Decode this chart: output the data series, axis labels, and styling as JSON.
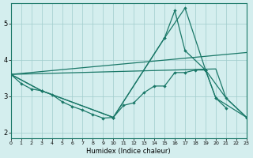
{
  "xlabel": "Humidex (Indice chaleur)",
  "bg_color": "#d4eeee",
  "grid_color": "#a0cccc",
  "line_color": "#1a7868",
  "xlim": [
    0,
    23
  ],
  "ylim": [
    1.85,
    5.55
  ],
  "xticks": [
    0,
    1,
    2,
    3,
    4,
    5,
    6,
    7,
    8,
    9,
    10,
    11,
    12,
    13,
    14,
    15,
    16,
    17,
    18,
    19,
    20,
    21,
    22,
    23
  ],
  "yticks": [
    2,
    3,
    4,
    5
  ],
  "lines": [
    {
      "x": [
        0,
        1,
        2,
        3,
        4,
        5,
        6,
        7,
        8,
        9,
        10,
        11,
        12,
        13,
        14,
        15,
        16,
        17,
        18,
        19,
        20,
        21,
        22,
        23
      ],
      "y": [
        3.6,
        3.35,
        3.2,
        3.15,
        3.05,
        2.85,
        2.72,
        2.62,
        2.5,
        2.4,
        2.42,
        2.75,
        2.82,
        3.1,
        3.28,
        3.28,
        3.65,
        3.65,
        3.72,
        3.72,
        2.95,
        2.68,
        null,
        null
      ],
      "marker": true
    },
    {
      "x": [
        0,
        3,
        10,
        15,
        16,
        17,
        19,
        20,
        23
      ],
      "y": [
        3.6,
        3.15,
        2.42,
        4.6,
        5.35,
        4.25,
        3.72,
        2.95,
        2.42
      ],
      "marker": true
    },
    {
      "x": [
        0,
        3,
        10,
        15,
        17,
        19,
        21,
        23
      ],
      "y": [
        3.6,
        3.15,
        2.42,
        4.6,
        5.42,
        3.72,
        2.95,
        2.42
      ],
      "marker": true
    },
    {
      "x": [
        0,
        20,
        21,
        23
      ],
      "y": [
        3.6,
        3.75,
        2.95,
        2.42
      ],
      "marker": false
    },
    {
      "x": [
        0,
        23
      ],
      "y": [
        3.6,
        4.2
      ],
      "marker": false
    }
  ]
}
